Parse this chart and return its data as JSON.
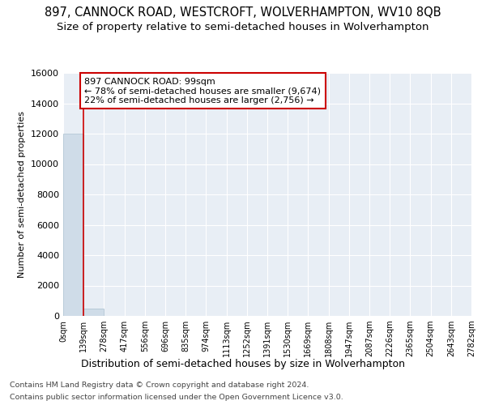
{
  "title": "897, CANNOCK ROAD, WESTCROFT, WOLVERHAMPTON, WV10 8QB",
  "subtitle": "Size of property relative to semi-detached houses in Wolverhampton",
  "xlabel": "Distribution of semi-detached houses by size in Wolverhampton",
  "ylabel": "Number of semi-detached properties",
  "annotation_title": "897 CANNOCK ROAD: 99sqm",
  "annotation_line1": "← 78% of semi-detached houses are smaller (9,674)",
  "annotation_line2": "22% of semi-detached houses are larger (2,756) →",
  "footer_line1": "Contains HM Land Registry data © Crown copyright and database right 2024.",
  "footer_line2": "Contains public sector information licensed under the Open Government Licence v3.0.",
  "bin_labels": [
    "0sqm",
    "139sqm",
    "278sqm",
    "417sqm",
    "556sqm",
    "696sqm",
    "835sqm",
    "974sqm",
    "1113sqm",
    "1252sqm",
    "1391sqm",
    "1530sqm",
    "1669sqm",
    "1808sqm",
    "1947sqm",
    "2087sqm",
    "2226sqm",
    "2365sqm",
    "2504sqm",
    "2643sqm",
    "2782sqm"
  ],
  "bar_heights": [
    12000,
    500,
    0,
    0,
    0,
    0,
    0,
    0,
    0,
    0,
    0,
    0,
    0,
    0,
    0,
    0,
    0,
    0,
    0,
    0
  ],
  "bar_color": "#cfdce8",
  "bar_edge_color": "#a8bfce",
  "vline_color": "#cc0000",
  "annotation_box_facecolor": "#ffffff",
  "annotation_box_edgecolor": "#cc0000",
  "title_fontsize": 10.5,
  "subtitle_fontsize": 9.5,
  "ylabel_fontsize": 8,
  "xlabel_fontsize": 9,
  "tick_fontsize": 8,
  "xtick_fontsize": 7,
  "footer_fontsize": 6.8,
  "ylim": [
    0,
    16000
  ],
  "yticks": [
    0,
    2000,
    4000,
    6000,
    8000,
    10000,
    12000,
    14000,
    16000
  ],
  "background_color": "#ffffff",
  "plot_background": "#e8eef5",
  "grid_color": "#ffffff"
}
